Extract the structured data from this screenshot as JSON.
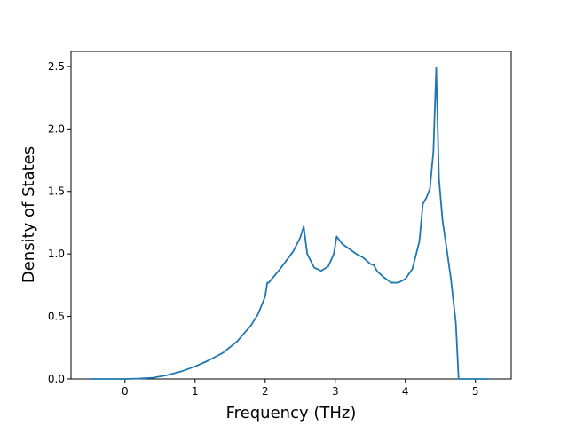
{
  "chart_data": {
    "type": "line",
    "x_label": "Frequency (THz)",
    "y_label": "Density of States",
    "x": [
      -0.5,
      0,
      0.2,
      0.4,
      0.6,
      0.8,
      1.0,
      1.2,
      1.4,
      1.6,
      1.8,
      1.9,
      2.0,
      2.03,
      2.05,
      2.2,
      2.4,
      2.5,
      2.55,
      2.6,
      2.7,
      2.8,
      2.9,
      2.98,
      3.02,
      3.1,
      3.2,
      3.3,
      3.4,
      3.5,
      3.55,
      3.6,
      3.7,
      3.8,
      3.9,
      4.0,
      4.1,
      4.2,
      4.25,
      4.3,
      4.35,
      4.4,
      4.44,
      4.48,
      4.53,
      4.6,
      4.65,
      4.72,
      4.76,
      4.9,
      5.2
    ],
    "series": [
      {
        "color": "#1f77b4",
        "values": [
          0,
          0,
          0.003,
          0.01,
          0.03,
          0.06,
          0.1,
          0.15,
          0.21,
          0.3,
          0.43,
          0.52,
          0.66,
          0.77,
          0.77,
          0.87,
          1.02,
          1.13,
          1.22,
          1.0,
          0.89,
          0.865,
          0.9,
          1.0,
          1.14,
          1.08,
          1.04,
          1.0,
          0.97,
          0.92,
          0.91,
          0.86,
          0.81,
          0.77,
          0.77,
          0.8,
          0.88,
          1.1,
          1.4,
          1.45,
          1.52,
          1.82,
          2.49,
          1.6,
          1.27,
          1.0,
          0.8,
          0.45,
          0,
          0,
          0
        ]
      }
    ],
    "xlim": [
      -0.77,
      5.51
    ],
    "ylim": [
      0,
      2.62
    ],
    "xticks": [
      0,
      1,
      2,
      3,
      4,
      5
    ],
    "yticks": [
      {
        "value": 0,
        "label": "0.0"
      },
      0.5,
      {
        "value": 1,
        "label": "1.0"
      },
      1.5,
      {
        "value": 2,
        "label": "2.0"
      },
      2.5
    ]
  }
}
